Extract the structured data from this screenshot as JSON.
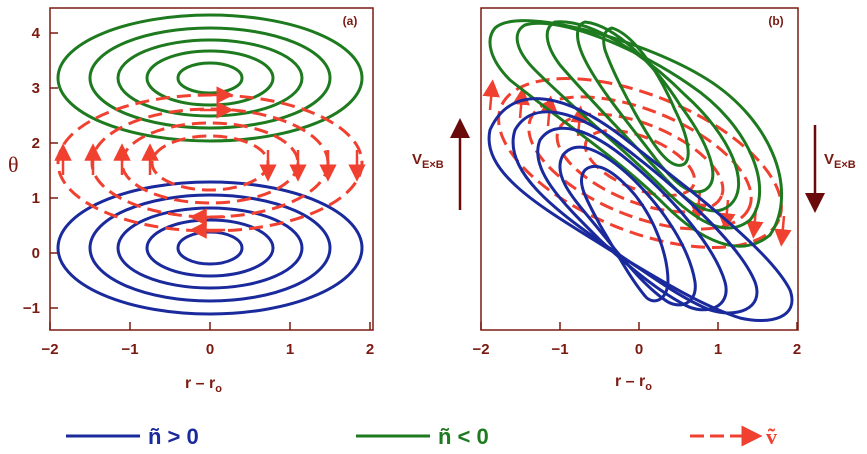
{
  "figure": {
    "panel_a_label": "(a)",
    "panel_b_label": "(b)",
    "y_label_a": "θ",
    "x_label_a": "r – r",
    "x_label_a_sub": "o",
    "x_label_b": "r – r",
    "x_label_b_sub": "o",
    "vexb_label": "V",
    "vexb_sub": "E×B",
    "x_ticks": [
      "−2",
      "−1",
      "0",
      "1",
      "2"
    ],
    "y_ticks": [
      "4",
      "3",
      "2",
      "1",
      "0",
      "−1"
    ]
  },
  "legend": {
    "positive_label": "ñ > 0",
    "negative_label": "ñ < 0",
    "velocity_label": "ṽ"
  },
  "colors": {
    "positive": "#1a2a9c",
    "negative": "#1e7a1e",
    "velocity": "#f04030",
    "axes": "#7a1a10",
    "arrow": "#6b0a0a"
  }
}
